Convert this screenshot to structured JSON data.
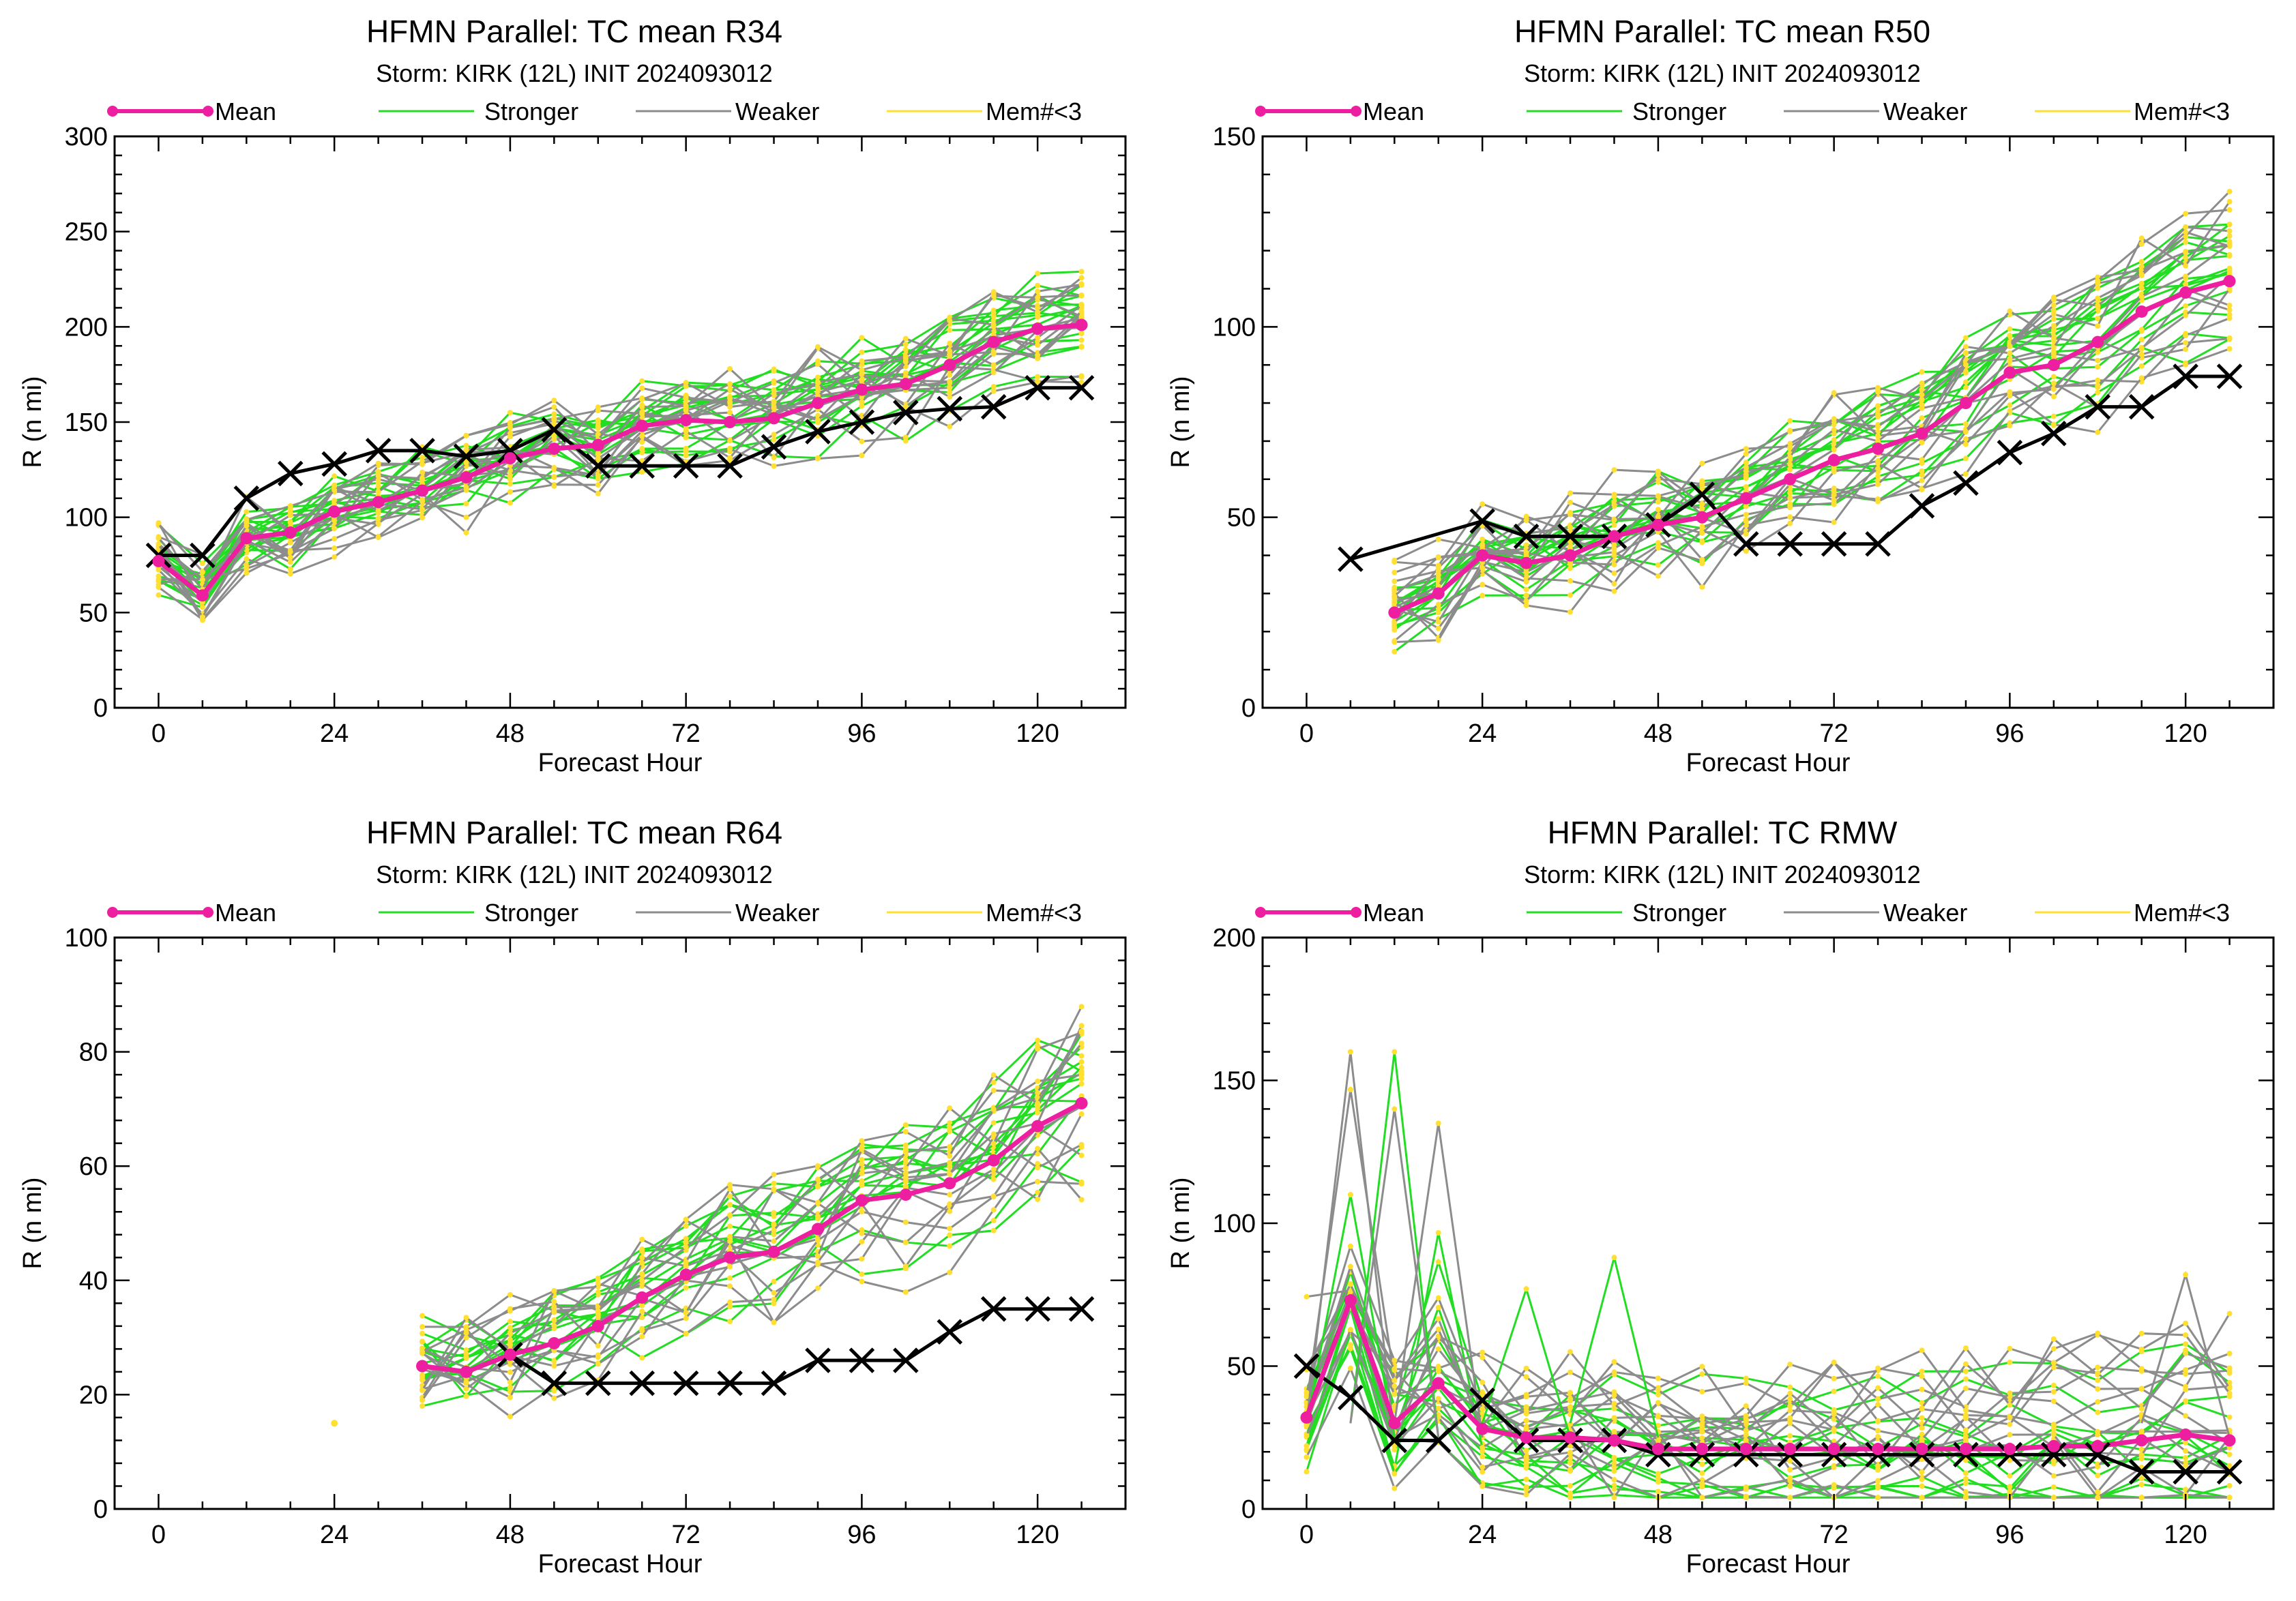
{
  "legend": {
    "mean": "Mean",
    "stronger": "Stronger",
    "weaker": "Weaker",
    "few": "Mem#<3"
  },
  "colors": {
    "mean": "#ee1ea0",
    "stronger": "#22dd22",
    "weaker": "#8c8c8c",
    "few": "#ffe030",
    "obs": "#000000"
  },
  "chart_data": [
    {
      "type": "line",
      "title": "HFMN Parallel: TC mean R34",
      "subtitle": "Storm: KIRK (12L) INIT 2024093012",
      "xlabel": "Forecast Hour",
      "ylabel": "R (n mi)",
      "xlim": [
        -6,
        132
      ],
      "ylim": [
        0,
        300
      ],
      "xticks": [
        0,
        24,
        48,
        72,
        96,
        120
      ],
      "yticks": [
        0,
        50,
        100,
        150,
        200,
        250,
        300
      ],
      "mean": {
        "x": [
          0,
          6,
          12,
          18,
          24,
          30,
          36,
          42,
          48,
          54,
          60,
          66,
          72,
          78,
          84,
          90,
          96,
          102,
          108,
          114,
          120,
          126
        ],
        "y": [
          77,
          59,
          89,
          92,
          103,
          108,
          114,
          121,
          131,
          136,
          138,
          148,
          151,
          150,
          152,
          160,
          167,
          170,
          180,
          192,
          199,
          201
        ]
      },
      "observed": {
        "x": [
          0,
          6,
          12,
          18,
          24,
          30,
          36,
          42,
          48,
          54,
          60,
          66,
          72,
          78,
          84,
          90,
          96,
          102,
          108,
          114,
          120,
          126
        ],
        "y": [
          80,
          80,
          110,
          123,
          128,
          135,
          135,
          132,
          135,
          146,
          127,
          127,
          127,
          127,
          137,
          145,
          150,
          155,
          157,
          158,
          168,
          168
        ]
      },
      "members": {
        "stronger": 16,
        "weaker": 14,
        "spread": 0.15,
        "lo": 0.13,
        "hi": 0.25
      }
    },
    {
      "type": "line",
      "title": "HFMN Parallel: TC mean R50",
      "subtitle": "Storm: KIRK (12L) INIT 2024093012",
      "xlabel": "Forecast Hour",
      "ylabel": "R (n mi)",
      "xlim": [
        -6,
        132
      ],
      "ylim": [
        0,
        150
      ],
      "xticks": [
        0,
        24,
        48,
        72,
        96,
        120
      ],
      "yticks": [
        0,
        50,
        100,
        150
      ],
      "mean": {
        "x": [
          12,
          18,
          24,
          30,
          36,
          42,
          48,
          54,
          60,
          66,
          72,
          78,
          84,
          90,
          96,
          102,
          108,
          114,
          120,
          126
        ],
        "y": [
          25,
          30,
          40,
          38,
          40,
          45,
          48,
          50,
          55,
          60,
          65,
          68,
          72,
          80,
          88,
          90,
          96,
          104,
          109,
          112
        ]
      },
      "observed": {
        "x": [
          6,
          24,
          30,
          36,
          42,
          48,
          54,
          60,
          66,
          72,
          78,
          84,
          90,
          96,
          102,
          108,
          114,
          120,
          126
        ],
        "y": [
          39,
          49,
          45,
          45,
          45,
          48,
          56,
          43,
          43,
          43,
          43,
          53,
          59,
          67,
          72,
          79,
          79,
          87,
          87
        ]
      },
      "members": {
        "stronger": 16,
        "weaker": 14,
        "spread": 0.2,
        "lo": 0.15,
        "hi": 0.32
      }
    },
    {
      "type": "line",
      "title": "HFMN Parallel: TC mean R64",
      "subtitle": "Storm: KIRK (12L) INIT 2024093012",
      "xlabel": "Forecast Hour",
      "ylabel": "R (n mi)",
      "xlim": [
        -6,
        132
      ],
      "ylim": [
        0,
        100
      ],
      "xticks": [
        0,
        24,
        48,
        72,
        96,
        120
      ],
      "yticks": [
        0,
        20,
        40,
        60,
        80,
        100
      ],
      "mean": {
        "x": [
          36,
          42,
          48,
          54,
          60,
          66,
          72,
          78,
          84,
          90,
          96,
          102,
          108,
          114,
          120,
          126
        ],
        "y": [
          25,
          24,
          27,
          29,
          32,
          37,
          41,
          44,
          45,
          49,
          54,
          55,
          57,
          61,
          67,
          71
        ]
      },
      "observed": {
        "x": [
          48,
          54,
          60,
          66,
          72,
          78,
          84,
          90,
          96,
          102,
          108,
          114,
          120,
          126
        ],
        "y": [
          27,
          22,
          22,
          22,
          22,
          22,
          22,
          26,
          26,
          26,
          31,
          35,
          35,
          35
        ]
      },
      "members": {
        "stronger": 14,
        "weaker": 12,
        "spread": 0.22,
        "lo": 0.2,
        "hi": 0.4
      },
      "isolated_points": [
        {
          "x": 24,
          "y": 15
        }
      ]
    },
    {
      "type": "line",
      "title": "HFMN Parallel: TC RMW",
      "subtitle": "Storm: KIRK (12L) INIT 2024093012",
      "xlabel": "Forecast Hour",
      "ylabel": "R (n mi)",
      "xlim": [
        -6,
        132
      ],
      "ylim": [
        0,
        200
      ],
      "xticks": [
        0,
        24,
        48,
        72,
        96,
        120
      ],
      "yticks": [
        0,
        50,
        100,
        150,
        200
      ],
      "mean": {
        "x": [
          0,
          6,
          12,
          18,
          24,
          30,
          36,
          42,
          48,
          54,
          60,
          66,
          72,
          78,
          84,
          90,
          96,
          102,
          108,
          114,
          120,
          126
        ],
        "y": [
          32,
          73,
          30,
          44,
          28,
          25,
          25,
          24,
          21,
          21,
          21,
          21,
          21,
          21,
          21,
          21,
          21,
          22,
          22,
          24,
          26,
          24
        ]
      },
      "observed": {
        "x": [
          0,
          6,
          12,
          18,
          24,
          30,
          36,
          42,
          48,
          54,
          60,
          66,
          72,
          78,
          84,
          90,
          96,
          102,
          108,
          114,
          120,
          126
        ],
        "y": [
          50,
          39,
          24,
          24,
          38,
          24,
          24,
          24,
          19,
          19,
          19,
          19,
          19,
          19,
          19,
          19,
          19,
          19,
          19,
          13,
          13,
          13
        ]
      },
      "members": {
        "stronger": 14,
        "weaker": 14,
        "spread": 0.3,
        "lo": 0.18,
        "hi": 0.35
      },
      "spikes": [
        {
          "x": 6,
          "y": 160
        },
        {
          "x": 12,
          "y": 160
        },
        {
          "x": 18,
          "y": 135
        },
        {
          "x": 6,
          "y": 110
        },
        {
          "x": 12,
          "y": 140
        },
        {
          "x": 42,
          "y": 88
        },
        {
          "x": 120,
          "y": 82
        },
        {
          "x": 30,
          "y": 77
        }
      ]
    }
  ]
}
